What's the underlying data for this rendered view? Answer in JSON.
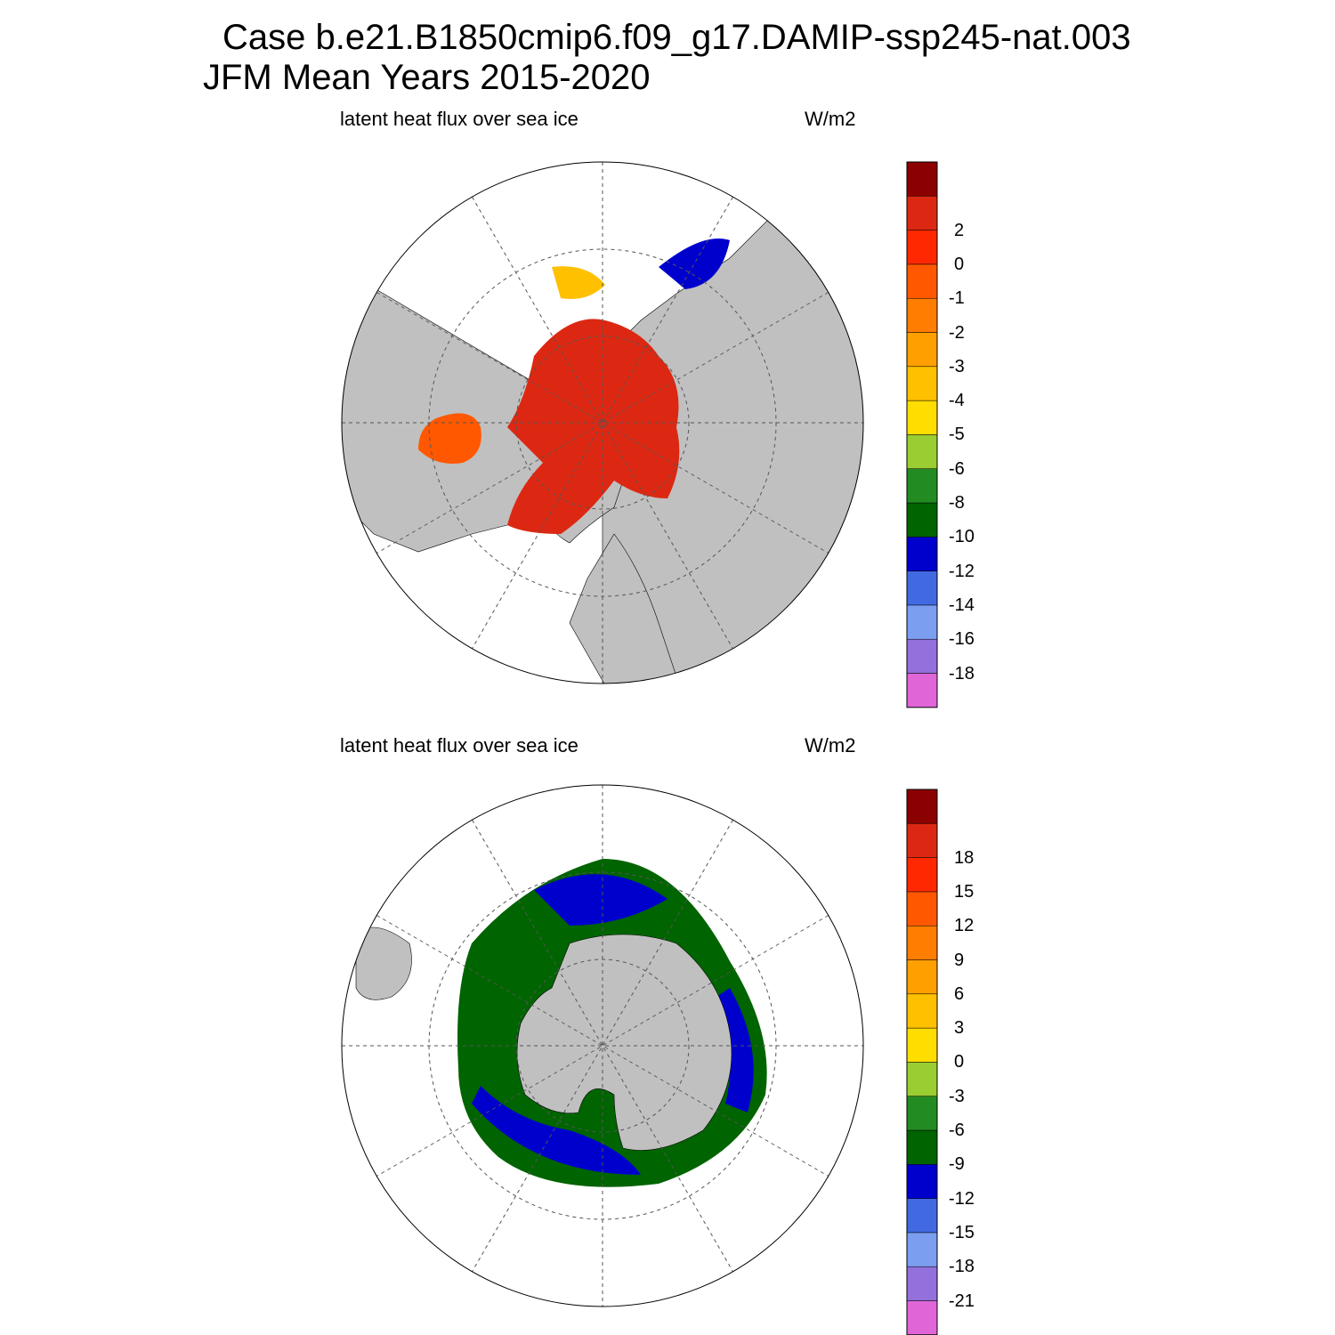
{
  "header": {
    "title_line1": "Case b.e21.B1850cmip6.f09_g17.DAMIP-ssp245-nat.003",
    "title_line2": "JFM Mean    Years 2015-2020"
  },
  "colors": {
    "land": "#c0c0c0",
    "ocean": "#ffffff",
    "graticule": "#555555"
  },
  "panels": [
    {
      "id": "north",
      "hemisphere": "north",
      "variable_label": "latent heat flux over sea ice",
      "units_label": "W/m2",
      "colorbar": {
        "colors": [
          "#e066d8",
          "#9370db",
          "#7b9ef0",
          "#4169e1",
          "#0000cd",
          "#006400",
          "#228b22",
          "#9acd32",
          "#ffdd00",
          "#ffc000",
          "#ffa000",
          "#ff7d00",
          "#ff5800",
          "#ff2800",
          "#dc2812",
          "#8b0000"
        ],
        "tick_labels": [
          "-18",
          "-16",
          "-14",
          "-12",
          "-10",
          "-8",
          "-6",
          "-5",
          "-4",
          "-3",
          "-2",
          "-1",
          "0",
          "2"
        ]
      }
    },
    {
      "id": "south",
      "hemisphere": "south",
      "variable_label": "latent heat flux over sea ice",
      "units_label": "W/m2",
      "colorbar": {
        "colors": [
          "#e066d8",
          "#9370db",
          "#7b9ef0",
          "#4169e1",
          "#0000cd",
          "#006400",
          "#228b22",
          "#9acd32",
          "#ffdd00",
          "#ffc000",
          "#ffa000",
          "#ff7d00",
          "#ff5800",
          "#ff2800",
          "#dc2812",
          "#8b0000"
        ],
        "tick_labels": [
          "-21",
          "-18",
          "-15",
          "-12",
          "-9",
          "-6",
          "-3",
          "0",
          "3",
          "6",
          "9",
          "12",
          "15",
          "18"
        ]
      }
    }
  ]
}
